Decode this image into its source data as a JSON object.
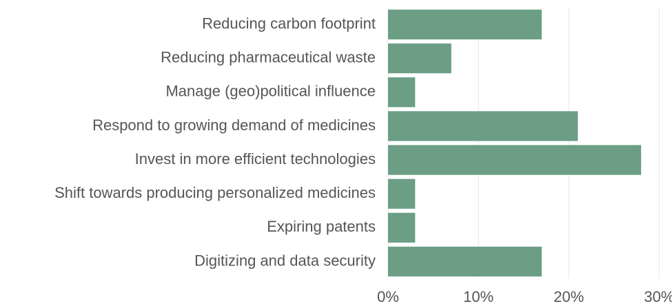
{
  "chart_data": {
    "type": "bar",
    "orientation": "horizontal",
    "categories": [
      "Reducing carbon footprint",
      "Reducing pharmaceutical waste",
      "Manage (geo)political influence",
      "Respond to growing demand of medicines",
      "Invest in more efficient technologies",
      "Shift towards producing personalized medicines",
      "Expiring patents",
      "Digitizing and data security"
    ],
    "values": [
      17,
      7,
      3,
      21,
      28,
      3,
      3,
      17
    ],
    "color": "#6b9e85",
    "xlim": [
      0,
      30.5
    ],
    "xticks": [
      {
        "value": 0,
        "label": "0%"
      },
      {
        "value": 10,
        "label": "10%"
      },
      {
        "value": 20,
        "label": "20%"
      },
      {
        "value": 30,
        "label": "30%"
      }
    ],
    "grid": true
  }
}
